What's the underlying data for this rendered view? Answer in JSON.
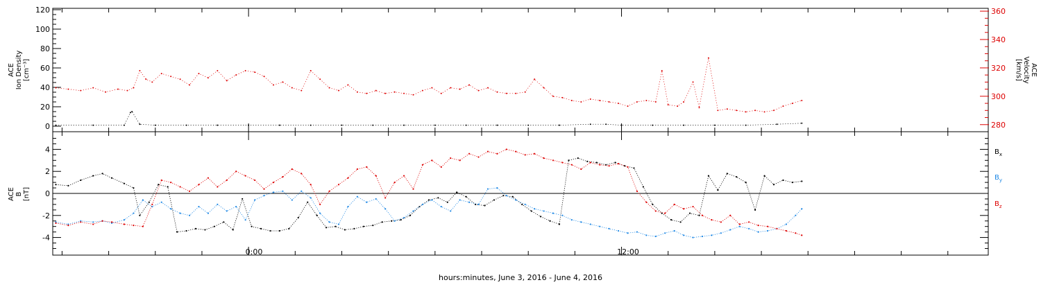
{
  "x_axis": {
    "title": "hours:minutes, June  3, 2016 - June  4, 2016",
    "tick_labels": [
      "0:00",
      "12:00"
    ]
  },
  "colors": {
    "density": "#000000",
    "velocity": "#dd0000",
    "bx": "#000000",
    "by": "#1e88e5",
    "bz": "#dd0000",
    "axis": "#000000"
  },
  "chart_data": [
    {
      "type": "scatter",
      "panel": "top",
      "ylabel_left": [
        "ACE",
        "Ion Density",
        "[cm⁻³]"
      ],
      "ylabel_right": [
        "ACE",
        "Velocity",
        "[km/s]"
      ],
      "ylim_left": [
        0,
        120
      ],
      "ylim_right": [
        275,
        362
      ],
      "yticks_left": [
        "0",
        "20",
        "40",
        "60",
        "80",
        "100",
        "120"
      ],
      "yticks_right": [
        "280",
        "300",
        "320",
        "340",
        "360"
      ],
      "x_range_hours": [
        -6.3,
        23.8
      ],
      "series": [
        {
          "key": "density",
          "x": [
            -6.2,
            -5.0,
            -4.0,
            -3.8,
            -3.75,
            -3.5,
            -3.0,
            -2.0,
            -1.0,
            0.0,
            1.0,
            2.0,
            3.0,
            4.0,
            5.0,
            6.0,
            7.0,
            8.0,
            9.0,
            10.0,
            11.0,
            11.5,
            12.0,
            13.0,
            14.0,
            15.0,
            16.0,
            17.0,
            17.8
          ],
          "values": [
            1,
            1,
            1,
            14,
            15,
            2,
            1,
            1,
            1,
            1,
            1,
            1,
            1,
            1,
            1,
            1,
            1,
            1,
            1,
            1,
            2,
            2,
            1,
            1,
            1,
            1,
            1,
            2,
            3
          ]
        },
        {
          "key": "velocity",
          "x": [
            -6.2,
            -5.8,
            -5.4,
            -5.0,
            -4.6,
            -4.2,
            -3.9,
            -3.7,
            -3.5,
            -3.3,
            -3.1,
            -2.8,
            -2.5,
            -2.2,
            -1.9,
            -1.6,
            -1.3,
            -1.0,
            -0.7,
            -0.4,
            -0.1,
            0.2,
            0.5,
            0.8,
            1.1,
            1.4,
            1.7,
            2.0,
            2.3,
            2.6,
            2.9,
            3.2,
            3.5,
            3.8,
            4.1,
            4.4,
            4.7,
            5.0,
            5.3,
            5.6,
            5.9,
            6.2,
            6.5,
            6.8,
            7.1,
            7.4,
            7.7,
            8.0,
            8.3,
            8.6,
            8.9,
            9.2,
            9.5,
            9.8,
            10.1,
            10.4,
            10.7,
            11.0,
            11.3,
            11.6,
            11.9,
            12.2,
            12.5,
            12.8,
            13.1,
            13.3,
            13.5,
            13.8,
            14.0,
            14.3,
            14.5,
            14.8,
            15.1,
            15.4,
            15.7,
            16.0,
            16.3,
            16.6,
            16.9,
            17.2,
            17.5,
            17.8
          ],
          "values": [
            306,
            305,
            304,
            306,
            303,
            305,
            304,
            306,
            318,
            312,
            310,
            316,
            314,
            312,
            308,
            316,
            313,
            318,
            311,
            315,
            318,
            317,
            314,
            308,
            310,
            306,
            304,
            318,
            312,
            306,
            304,
            308,
            303,
            302,
            304,
            302,
            303,
            302,
            301,
            304,
            306,
            302,
            306,
            305,
            308,
            304,
            306,
            303,
            302,
            302,
            303,
            312,
            306,
            300,
            299,
            297,
            296,
            298,
            297,
            296,
            295,
            293,
            296,
            297,
            296,
            318,
            294,
            293,
            296,
            310,
            292,
            327,
            290,
            291,
            290,
            289,
            290,
            289,
            290,
            293,
            295,
            297
          ]
        }
      ]
    },
    {
      "type": "scatter",
      "panel": "bottom",
      "ylabel_left": [
        "ACE",
        "B",
        "[nT]"
      ],
      "ylim": [
        -5.6,
        5.6
      ],
      "yticks": [
        "-4",
        "-2",
        "0",
        "2",
        "4"
      ],
      "zero_line": true,
      "legend": [
        "Bx",
        "By",
        "Bz"
      ],
      "x_range_hours": [
        -6.3,
        23.8
      ],
      "series": [
        {
          "key": "bx",
          "name": "Bx",
          "x": [
            -6.2,
            -5.8,
            -5.4,
            -5.0,
            -4.7,
            -4.4,
            -4.0,
            -3.7,
            -3.5,
            -3.2,
            -2.9,
            -2.6,
            -2.3,
            -2.0,
            -1.7,
            -1.4,
            -1.1,
            -0.8,
            -0.5,
            -0.2,
            0.1,
            0.4,
            0.7,
            1.0,
            1.3,
            1.6,
            1.9,
            2.2,
            2.5,
            2.8,
            3.1,
            3.4,
            3.7,
            4.0,
            4.3,
            4.6,
            4.9,
            5.2,
            5.5,
            5.8,
            6.1,
            6.4,
            6.7,
            7.0,
            7.3,
            7.6,
            7.9,
            8.2,
            8.5,
            8.8,
            9.1,
            9.4,
            9.7,
            10.0,
            10.3,
            10.6,
            10.9,
            11.2,
            11.5,
            11.8,
            12.1,
            12.4,
            12.7,
            13.0,
            13.3,
            13.6,
            13.9,
            14.2,
            14.5,
            14.8,
            15.1,
            15.4,
            15.7,
            16.0,
            16.3,
            16.6,
            16.9,
            17.2,
            17.5,
            17.8
          ],
          "values": [
            0.8,
            0.7,
            1.2,
            1.6,
            1.8,
            1.4,
            0.9,
            0.5,
            -2.0,
            -0.8,
            0.8,
            0.6,
            -3.5,
            -3.4,
            -3.2,
            -3.3,
            -3.0,
            -2.6,
            -3.3,
            -0.5,
            -3.0,
            -3.2,
            -3.4,
            -3.4,
            -3.2,
            -2.2,
            -0.8,
            -2.0,
            -3.1,
            -3.0,
            -3.3,
            -3.2,
            -3.0,
            -2.9,
            -2.6,
            -2.5,
            -2.4,
            -2.0,
            -1.2,
            -0.6,
            -0.4,
            -0.8,
            0.1,
            -0.3,
            -1.0,
            -1.1,
            -0.6,
            -0.2,
            -0.3,
            -1.0,
            -1.6,
            -2.1,
            -2.5,
            -2.8,
            3.0,
            3.2,
            2.9,
            2.8,
            2.6,
            2.8,
            2.5,
            2.3,
            0.6,
            -1.0,
            -1.8,
            -2.4,
            -2.6,
            -1.8,
            -2.0,
            1.6,
            0.3,
            1.8,
            1.5,
            1.0,
            -1.5,
            1.6,
            0.8,
            1.2,
            1.0,
            1.1
          ]
        },
        {
          "key": "by",
          "name": "By",
          "x": [
            -6.2,
            -5.8,
            -5.4,
            -5.0,
            -4.7,
            -4.4,
            -4.0,
            -3.7,
            -3.4,
            -3.1,
            -2.8,
            -2.5,
            -2.2,
            -1.9,
            -1.6,
            -1.3,
            -1.0,
            -0.7,
            -0.4,
            -0.1,
            0.2,
            0.5,
            0.8,
            1.1,
            1.4,
            1.7,
            2.0,
            2.3,
            2.6,
            2.9,
            3.2,
            3.5,
            3.8,
            4.1,
            4.4,
            4.7,
            5.0,
            5.3,
            5.6,
            5.9,
            6.2,
            6.5,
            6.8,
            7.1,
            7.4,
            7.7,
            8.0,
            8.3,
            8.6,
            8.9,
            9.2,
            9.5,
            9.8,
            10.1,
            10.4,
            10.7,
            11.0,
            11.3,
            11.6,
            11.9,
            12.2,
            12.5,
            12.8,
            13.1,
            13.4,
            13.7,
            14.0,
            14.3,
            14.6,
            14.9,
            15.2,
            15.5,
            15.8,
            16.1,
            16.4,
            16.7,
            17.0,
            17.3,
            17.6,
            17.8
          ],
          "values": [
            -2.6,
            -2.8,
            -2.5,
            -2.6,
            -2.5,
            -2.7,
            -2.4,
            -1.8,
            -0.6,
            -1.2,
            -0.8,
            -1.4,
            -1.8,
            -2.0,
            -1.2,
            -1.8,
            -1.0,
            -1.6,
            -1.2,
            -2.4,
            -0.6,
            -0.2,
            0.1,
            0.2,
            -0.6,
            0.2,
            -0.4,
            -1.8,
            -2.6,
            -2.8,
            -1.2,
            -0.3,
            -0.8,
            -0.5,
            -1.4,
            -2.5,
            -2.2,
            -1.6,
            -1.0,
            -0.6,
            -1.2,
            -1.6,
            -0.6,
            -0.8,
            -1.0,
            0.4,
            0.5,
            -0.2,
            -0.6,
            -1.0,
            -1.4,
            -1.6,
            -1.8,
            -2.0,
            -2.4,
            -2.6,
            -2.8,
            -3.0,
            -3.2,
            -3.4,
            -3.6,
            -3.5,
            -3.8,
            -3.9,
            -3.6,
            -3.4,
            -3.8,
            -4.0,
            -3.9,
            -3.8,
            -3.6,
            -3.3,
            -3.0,
            -3.2,
            -3.5,
            -3.4,
            -3.2,
            -2.8,
            -2.0,
            -1.4
          ]
        },
        {
          "key": "bz",
          "name": "Bz",
          "x": [
            -6.2,
            -5.8,
            -5.4,
            -5.0,
            -4.7,
            -4.4,
            -4.0,
            -3.7,
            -3.4,
            -3.1,
            -2.8,
            -2.5,
            -2.2,
            -1.9,
            -1.6,
            -1.3,
            -1.0,
            -0.7,
            -0.4,
            -0.1,
            0.2,
            0.5,
            0.8,
            1.1,
            1.4,
            1.7,
            2.0,
            2.3,
            2.6,
            2.9,
            3.2,
            3.5,
            3.8,
            4.1,
            4.4,
            4.7,
            5.0,
            5.3,
            5.6,
            5.9,
            6.2,
            6.5,
            6.8,
            7.1,
            7.4,
            7.7,
            8.0,
            8.3,
            8.6,
            8.9,
            9.2,
            9.5,
            9.8,
            10.1,
            10.4,
            10.7,
            11.0,
            11.3,
            11.6,
            11.9,
            12.2,
            12.5,
            12.8,
            13.1,
            13.4,
            13.7,
            14.0,
            14.3,
            14.6,
            14.9,
            15.2,
            15.5,
            15.8,
            16.1,
            16.4,
            16.7,
            17.0,
            17.3,
            17.6,
            17.8
          ],
          "values": [
            -2.7,
            -2.9,
            -2.6,
            -2.8,
            -2.5,
            -2.6,
            -2.8,
            -2.9,
            -3.0,
            -1.0,
            1.2,
            1.0,
            0.6,
            0.2,
            0.8,
            1.4,
            0.6,
            1.2,
            2.0,
            1.6,
            1.2,
            0.4,
            1.0,
            1.5,
            2.2,
            1.8,
            0.8,
            -1.0,
            0.2,
            0.8,
            1.4,
            2.2,
            2.4,
            1.6,
            -0.4,
            1.0,
            1.6,
            0.4,
            2.6,
            3.0,
            2.4,
            3.2,
            3.0,
            3.6,
            3.3,
            3.8,
            3.6,
            4.0,
            3.8,
            3.5,
            3.6,
            3.2,
            3.0,
            2.8,
            2.6,
            2.2,
            2.8,
            2.6,
            2.5,
            2.7,
            2.4,
            0.2,
            -0.8,
            -1.6,
            -1.8,
            -1.0,
            -1.4,
            -1.2,
            -2.0,
            -2.4,
            -2.6,
            -2.0,
            -2.8,
            -2.6,
            -2.9,
            -3.0,
            -3.2,
            -3.4,
            -3.6,
            -3.8
          ]
        }
      ]
    }
  ]
}
